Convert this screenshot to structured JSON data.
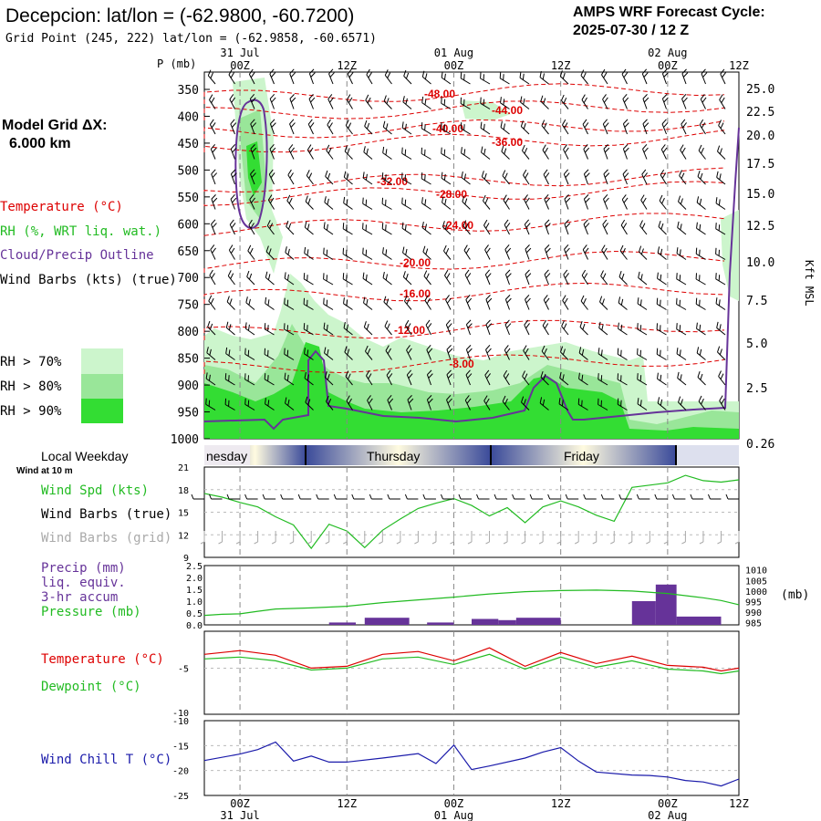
{
  "header": {
    "station_title": "Decepcion:  lat/lon = (-62.9800, -60.7200)",
    "grid_point": "Grid Point (245, 222) lat/lon = (-62.9858, -60.6571)",
    "forecast_title": "AMPS WRF Forecast Cycle:",
    "forecast_cycle": "2025-07-30 / 12  Z",
    "model_grid_label": "Model Grid ΔX:",
    "model_grid_value": "6.000 km"
  },
  "left_legend": {
    "temperature": "Temperature (°C)",
    "rh": "RH (%, WRT liq. wat.)",
    "cloud": "Cloud/Precip Outline",
    "wind": "Wind Barbs (kts) (true)",
    "rh70": "RH > 70%",
    "rh80": "RH > 80%",
    "rh90": "RH > 90%"
  },
  "colors": {
    "temperature": "#dd0000",
    "rh70": "#ccf5cc",
    "rh80": "#99e699",
    "rh90": "#33dd33",
    "cloud": "#663399",
    "wind": "#000000",
    "wind_grid": "#aaaaaa",
    "precip": "#663399",
    "pressure": "#22bb22",
    "dewpoint": "#22bb22",
    "windchill": "#1a1aaa"
  },
  "time_axis": {
    "ticks": [
      "00Z",
      "12Z",
      "00Z",
      "12Z",
      "00Z",
      "12Z"
    ],
    "dates_top": [
      "31 Jul",
      "01 Aug",
      "02 Aug"
    ],
    "dates_bottom": [
      "31 Jul",
      "01 Aug",
      "02 Aug"
    ]
  },
  "pressure_axis_label": "P (mb)",
  "height_axis_label": "Kft MSL",
  "weekday_label": "Local Weekday",
  "wind_at": "Wind at 10 m",
  "weekdays": [
    "nesday",
    "Thursday",
    "Friday"
  ],
  "panel_labels": {
    "wind_spd": "Wind Spd (kts)",
    "wind_true": "Wind Barbs (true)",
    "wind_grid": "Wind Barbs (grid)",
    "precip1": "Precip (mm)",
    "precip2": "liq. equiv.",
    "precip3": "3-hr accum",
    "pressure": "Pressure (mb)",
    "temp": "Temperature (°C)",
    "dew": "Dewpoint (°C)",
    "chill": "Wind Chill T (°C)",
    "mb": "(mb)"
  },
  "chart_data": [
    {
      "type": "heatmap",
      "title": "Decepcion:  lat/lon = (-62.9800, -60.7200)",
      "ylabel": "P (mb)",
      "y2label": "Kft MSL",
      "y_ticks": [
        350,
        400,
        450,
        500,
        550,
        600,
        650,
        700,
        750,
        800,
        850,
        900,
        950,
        1000
      ],
      "y2_ticks": [
        "25.0",
        "22.5",
        "20.0",
        "17.5",
        "15.0",
        "12.5",
        "10.0",
        "7.5",
        "5.0",
        "2.5",
        "0.26"
      ],
      "temperature_contours": [
        "-48.00",
        "-44.00",
        "-40.00",
        "-36.00",
        "-32.00",
        "-28.00",
        "-24.00",
        "-20.00",
        "-16.00",
        "-12.00",
        "-8.00"
      ]
    },
    {
      "type": "line",
      "title": "Wind Spd (kts)",
      "ylim": [
        9,
        21
      ],
      "y_ticks": [
        9,
        12,
        15,
        18,
        21
      ],
      "x_hours": [
        0,
        6,
        12,
        18,
        24,
        30,
        36,
        42,
        48,
        54,
        60,
        66,
        72,
        78,
        84,
        90,
        96,
        102,
        108,
        114,
        120,
        126,
        132,
        138,
        144,
        150,
        156,
        162,
        168,
        174,
        180
      ],
      "series": [
        {
          "values": [
            17.5,
            17,
            16.3,
            15.7,
            14.4,
            13.3,
            10.2,
            13.4,
            12.5,
            10.3,
            12.6,
            14.1,
            15.5,
            16.2,
            16.8,
            15.9,
            14.5,
            15.6,
            13.6,
            15.7,
            16.5,
            15.7,
            14.6,
            13.8,
            18.3,
            18.6,
            18.9,
            19.9,
            19.2,
            19.0,
            19.3
          ]
        }
      ]
    },
    {
      "type": "bar",
      "title": "Precip (mm) / Pressure (mb)",
      "ylim": [
        0,
        2.5
      ],
      "y_ticks": [
        "0.0",
        "0.5",
        "1.0",
        "1.5",
        "2.0",
        "2.5"
      ],
      "y2_ticks": [
        985,
        990,
        995,
        1000,
        1005,
        1010
      ],
      "precip_bars": [
        {
          "start": 42,
          "end": 51,
          "value": 0.1
        },
        {
          "start": 54,
          "end": 69,
          "value": 0.3
        },
        {
          "start": 75,
          "end": 84,
          "value": 0.1
        },
        {
          "start": 90,
          "end": 99,
          "value": 0.25
        },
        {
          "start": 99,
          "end": 105,
          "value": 0.2
        },
        {
          "start": 105,
          "end": 120,
          "value": 0.3
        },
        {
          "start": 144,
          "end": 152,
          "value": 1.0
        },
        {
          "start": 152,
          "end": 159,
          "value": 1.7
        },
        {
          "start": 159,
          "end": 174,
          "value": 0.35
        }
      ],
      "pressure": {
        "x_hours": [
          0,
          6,
          12,
          18,
          24,
          36,
          48,
          60,
          72,
          84,
          96,
          108,
          120,
          132,
          144,
          156,
          168,
          174,
          180
        ],
        "values": [
          988.5,
          989.0,
          989.2,
          990.4,
          991.5,
          992.0,
          992.8,
          994.5,
          995.8,
          997.1,
          998.6,
          999.7,
          1000.2,
          1000.4,
          1000.0,
          998.8,
          996.8,
          995.5,
          993.5
        ]
      }
    },
    {
      "type": "line",
      "title": "Temperature (°C) / Dewpoint (°C)",
      "y_ticks": [
        "-5",
        "-10"
      ],
      "x_hours": [
        0,
        12,
        24,
        36,
        48,
        60,
        72,
        84,
        96,
        108,
        120,
        132,
        144,
        156,
        168,
        174,
        180
      ],
      "series": [
        {
          "name": "Temperature (°C)",
          "values": [
            -3.5,
            -3.1,
            -3.6,
            -5.0,
            -4.8,
            -3.5,
            -3.2,
            -4.2,
            -2.8,
            -4.8,
            -3.3,
            -4.5,
            -3.7,
            -4.7,
            -4.9,
            -5.3,
            -5.0
          ]
        },
        {
          "name": "Dewpoint (°C)",
          "values": [
            -4.0,
            -3.8,
            -4.2,
            -5.2,
            -5.0,
            -4.0,
            -3.8,
            -4.6,
            -3.5,
            -5.1,
            -3.8,
            -4.9,
            -4.2,
            -5.1,
            -5.3,
            -5.6,
            -5.3
          ]
        }
      ]
    },
    {
      "type": "line",
      "title": "Wind Chill T (°C)",
      "ylim": [
        -25,
        -10
      ],
      "y_ticks": [
        -10,
        -15,
        -20,
        -25
      ],
      "x_hours": [
        0,
        12,
        18,
        24,
        30,
        36,
        42,
        48,
        60,
        72,
        78,
        84,
        90,
        96,
        108,
        114,
        120,
        126,
        132,
        144,
        150,
        156,
        162,
        168,
        174,
        180
      ],
      "series": [
        {
          "values": [
            -18.0,
            -16.7,
            -15.8,
            -14.3,
            -18.1,
            -17.1,
            -18.3,
            -18.3,
            -17.5,
            -16.6,
            -18.6,
            -14.9,
            -19.8,
            -19.1,
            -17.5,
            -16.3,
            -15.4,
            -18.1,
            -20.3,
            -20.9,
            -21.0,
            -21.3,
            -22.0,
            -22.3,
            -23.1,
            -21.7
          ]
        }
      ]
    }
  ]
}
